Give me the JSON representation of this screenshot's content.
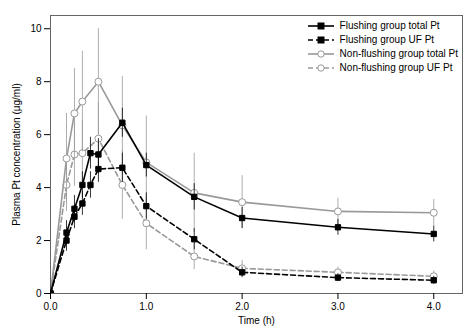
{
  "chart_data": {
    "type": "line",
    "xlabel": "Time (h)",
    "ylabel": "Plasma Pt concentration (μg/ml)",
    "xlim": [
      0,
      4.3
    ],
    "ylim": [
      0,
      10.5
    ],
    "xticks": [
      0,
      1,
      2,
      3,
      4
    ],
    "yticks": [
      0,
      2,
      4,
      6,
      8,
      10
    ],
    "grid": false,
    "legend": "upper right",
    "series": [
      {
        "name": "Flushing group total Pt",
        "color": "#000000",
        "marker": "square",
        "line_style": "solid",
        "x": [
          0,
          0.167,
          0.25,
          0.333,
          0.417,
          0.5,
          0.75,
          1.0,
          1.5,
          2.0,
          3.0,
          4.0
        ],
        "values": [
          0,
          2.3,
          3.2,
          4.1,
          5.3,
          5.25,
          6.45,
          4.85,
          3.65,
          2.85,
          2.5,
          2.25
        ],
        "errors": [
          0,
          0.45,
          0.5,
          0.5,
          0.6,
          0.6,
          0.55,
          0.45,
          0.5,
          0.4,
          0.3,
          0.3
        ]
      },
      {
        "name": "Flushing group UF Pt",
        "color": "#000000",
        "marker": "square",
        "line_style": "dashed",
        "x": [
          0,
          0.167,
          0.25,
          0.333,
          0.417,
          0.5,
          0.75,
          1.0,
          1.5,
          2.0,
          3.0,
          4.0
        ],
        "values": [
          0,
          2.0,
          2.9,
          3.4,
          4.1,
          4.7,
          4.75,
          3.3,
          2.05,
          0.8,
          0.6,
          0.5
        ],
        "errors": [
          0,
          0.4,
          0.45,
          0.45,
          0.5,
          0.5,
          0.55,
          0.5,
          0.4,
          0.2,
          0.15,
          0.15
        ]
      },
      {
        "name": "Non-flushing group total Pt",
        "color": "#999999",
        "marker": "circle",
        "line_style": "solid",
        "x": [
          0,
          0.167,
          0.25,
          0.333,
          0.5,
          0.75,
          1.0,
          1.5,
          2.0,
          3.0,
          4.0
        ],
        "values": [
          0,
          5.1,
          6.8,
          7.25,
          8.0,
          6.35,
          4.95,
          3.8,
          3.45,
          3.1,
          3.05
        ],
        "errors": [
          0,
          1.7,
          1.7,
          1.9,
          2.0,
          1.85,
          1.75,
          1.5,
          1.0,
          0.5,
          0.5
        ]
      },
      {
        "name": "Non-flushing group UF Pt",
        "color": "#999999",
        "marker": "circle",
        "line_style": "dashed",
        "x": [
          0,
          0.167,
          0.25,
          0.333,
          0.5,
          0.75,
          1.0,
          1.5,
          2.0,
          3.0,
          4.0
        ],
        "values": [
          0,
          4.1,
          5.25,
          5.3,
          5.85,
          4.1,
          2.65,
          1.4,
          0.95,
          0.8,
          0.65
        ],
        "errors": [
          0,
          1.0,
          1.2,
          1.25,
          1.35,
          1.3,
          1.0,
          0.5,
          0.3,
          0.2,
          0.2
        ]
      }
    ]
  }
}
